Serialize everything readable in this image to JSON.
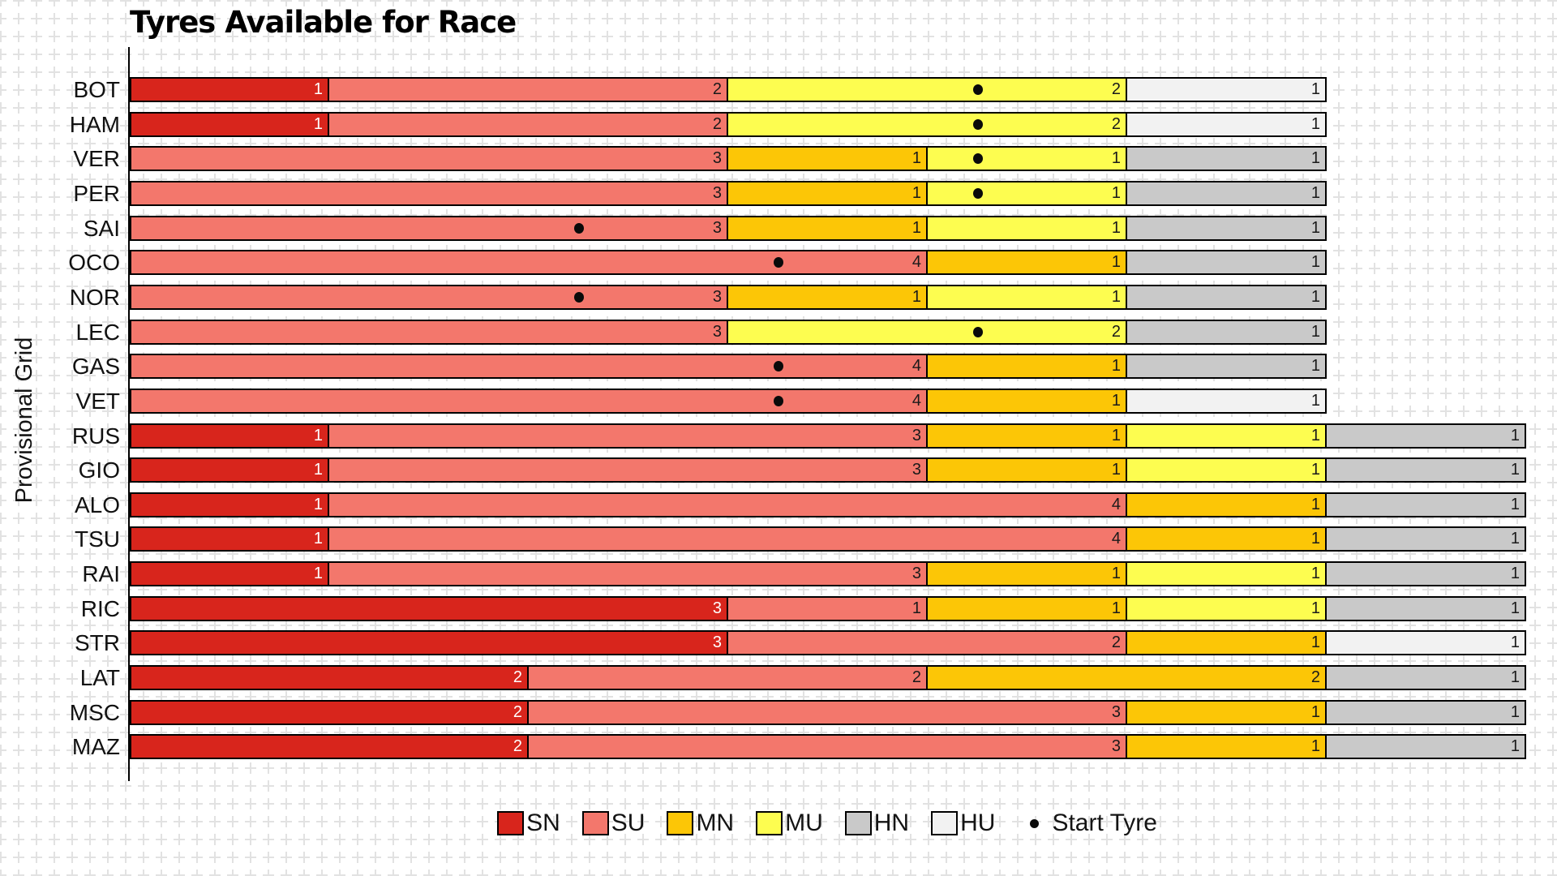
{
  "title": "Tyres Available for Race",
  "y_axis_label": "Provisional Grid",
  "legend": {
    "start_tyre_label": "Start Tyre"
  },
  "chart_data": {
    "type": "bar",
    "orientation": "horizontal",
    "stacked": true,
    "title": "Tyres Available for Race",
    "xlabel": "",
    "ylabel": "Provisional Grid",
    "xlim": [
      0,
      7
    ],
    "grid": "light plus-cross background pattern",
    "legend_position": "lower center",
    "start_tyre_marker": "black dot inside starting compound segment",
    "categories": [
      "BOT",
      "HAM",
      "VER",
      "PER",
      "SAI",
      "OCO",
      "NOR",
      "LEC",
      "GAS",
      "VET",
      "RUS",
      "GIO",
      "ALO",
      "TSU",
      "RAI",
      "RIC",
      "STR",
      "LAT",
      "MSC",
      "MAZ"
    ],
    "compounds": [
      "SN",
      "SU",
      "MN",
      "MU",
      "HN",
      "HU"
    ],
    "compound_colors": {
      "SN": "#d8251c",
      "SU": "#f3776c",
      "MN": "#fcc606",
      "MU": "#fdfd50",
      "HN": "#c9c9c9",
      "HU": "#f2f2f2"
    },
    "value_text_colors": {
      "SN": "#ffffff",
      "SU": "#1a1a1a",
      "MN": "#1a1a1a",
      "MU": "#1a1a1a",
      "HN": "#1a1a1a",
      "HU": "#1a1a1a"
    },
    "rows": [
      {
        "driver": "BOT",
        "segments": [
          {
            "compound": "SN",
            "count": 1
          },
          {
            "compound": "SU",
            "count": 2
          },
          {
            "compound": "MU",
            "count": 2
          },
          {
            "compound": "HU",
            "count": 1
          }
        ],
        "start_tyre": "MU"
      },
      {
        "driver": "HAM",
        "segments": [
          {
            "compound": "SN",
            "count": 1
          },
          {
            "compound": "SU",
            "count": 2
          },
          {
            "compound": "MU",
            "count": 2
          },
          {
            "compound": "HU",
            "count": 1
          }
        ],
        "start_tyre": "MU"
      },
      {
        "driver": "VER",
        "segments": [
          {
            "compound": "SU",
            "count": 3
          },
          {
            "compound": "MN",
            "count": 1
          },
          {
            "compound": "MU",
            "count": 1
          },
          {
            "compound": "HN",
            "count": 1
          }
        ],
        "start_tyre": "MU"
      },
      {
        "driver": "PER",
        "segments": [
          {
            "compound": "SU",
            "count": 3
          },
          {
            "compound": "MN",
            "count": 1
          },
          {
            "compound": "MU",
            "count": 1
          },
          {
            "compound": "HN",
            "count": 1
          }
        ],
        "start_tyre": "MU"
      },
      {
        "driver": "SAI",
        "segments": [
          {
            "compound": "SU",
            "count": 3
          },
          {
            "compound": "MN",
            "count": 1
          },
          {
            "compound": "MU",
            "count": 1
          },
          {
            "compound": "HN",
            "count": 1
          }
        ],
        "start_tyre": "SU"
      },
      {
        "driver": "OCO",
        "segments": [
          {
            "compound": "SU",
            "count": 4
          },
          {
            "compound": "MN",
            "count": 1
          },
          {
            "compound": "HN",
            "count": 1
          }
        ],
        "start_tyre": "SU"
      },
      {
        "driver": "NOR",
        "segments": [
          {
            "compound": "SU",
            "count": 3
          },
          {
            "compound": "MN",
            "count": 1
          },
          {
            "compound": "MU",
            "count": 1
          },
          {
            "compound": "HN",
            "count": 1
          }
        ],
        "start_tyre": "SU"
      },
      {
        "driver": "LEC",
        "segments": [
          {
            "compound": "SU",
            "count": 3
          },
          {
            "compound": "MU",
            "count": 2
          },
          {
            "compound": "HN",
            "count": 1
          }
        ],
        "start_tyre": "MU"
      },
      {
        "driver": "GAS",
        "segments": [
          {
            "compound": "SU",
            "count": 4
          },
          {
            "compound": "MN",
            "count": 1
          },
          {
            "compound": "HN",
            "count": 1
          }
        ],
        "start_tyre": "SU"
      },
      {
        "driver": "VET",
        "segments": [
          {
            "compound": "SU",
            "count": 4
          },
          {
            "compound": "MN",
            "count": 1
          },
          {
            "compound": "HU",
            "count": 1
          }
        ],
        "start_tyre": "SU"
      },
      {
        "driver": "RUS",
        "segments": [
          {
            "compound": "SN",
            "count": 1
          },
          {
            "compound": "SU",
            "count": 3
          },
          {
            "compound": "MN",
            "count": 1
          },
          {
            "compound": "MU",
            "count": 1
          },
          {
            "compound": "HN",
            "count": 1
          }
        ],
        "start_tyre": null
      },
      {
        "driver": "GIO",
        "segments": [
          {
            "compound": "SN",
            "count": 1
          },
          {
            "compound": "SU",
            "count": 3
          },
          {
            "compound": "MN",
            "count": 1
          },
          {
            "compound": "MU",
            "count": 1
          },
          {
            "compound": "HN",
            "count": 1
          }
        ],
        "start_tyre": null
      },
      {
        "driver": "ALO",
        "segments": [
          {
            "compound": "SN",
            "count": 1
          },
          {
            "compound": "SU",
            "count": 4
          },
          {
            "compound": "MN",
            "count": 1
          },
          {
            "compound": "HN",
            "count": 1
          }
        ],
        "start_tyre": null
      },
      {
        "driver": "TSU",
        "segments": [
          {
            "compound": "SN",
            "count": 1
          },
          {
            "compound": "SU",
            "count": 4
          },
          {
            "compound": "MN",
            "count": 1
          },
          {
            "compound": "HN",
            "count": 1
          }
        ],
        "start_tyre": null
      },
      {
        "driver": "RAI",
        "segments": [
          {
            "compound": "SN",
            "count": 1
          },
          {
            "compound": "SU",
            "count": 3
          },
          {
            "compound": "MN",
            "count": 1
          },
          {
            "compound": "MU",
            "count": 1
          },
          {
            "compound": "HN",
            "count": 1
          }
        ],
        "start_tyre": null
      },
      {
        "driver": "RIC",
        "segments": [
          {
            "compound": "SN",
            "count": 3
          },
          {
            "compound": "SU",
            "count": 1
          },
          {
            "compound": "MN",
            "count": 1
          },
          {
            "compound": "MU",
            "count": 1
          },
          {
            "compound": "HN",
            "count": 1
          }
        ],
        "start_tyre": null
      },
      {
        "driver": "STR",
        "segments": [
          {
            "compound": "SN",
            "count": 3
          },
          {
            "compound": "SU",
            "count": 2
          },
          {
            "compound": "MN",
            "count": 1
          },
          {
            "compound": "HU",
            "count": 1
          }
        ],
        "start_tyre": null
      },
      {
        "driver": "LAT",
        "segments": [
          {
            "compound": "SN",
            "count": 2
          },
          {
            "compound": "SU",
            "count": 2
          },
          {
            "compound": "MN",
            "count": 2
          },
          {
            "compound": "HN",
            "count": 1
          }
        ],
        "start_tyre": null
      },
      {
        "driver": "MSC",
        "segments": [
          {
            "compound": "SN",
            "count": 2
          },
          {
            "compound": "SU",
            "count": 3
          },
          {
            "compound": "MN",
            "count": 1
          },
          {
            "compound": "HN",
            "count": 1
          }
        ],
        "start_tyre": null
      },
      {
        "driver": "MAZ",
        "segments": [
          {
            "compound": "SN",
            "count": 2
          },
          {
            "compound": "SU",
            "count": 3
          },
          {
            "compound": "MN",
            "count": 1
          },
          {
            "compound": "HN",
            "count": 1
          }
        ],
        "start_tyre": null
      }
    ]
  }
}
